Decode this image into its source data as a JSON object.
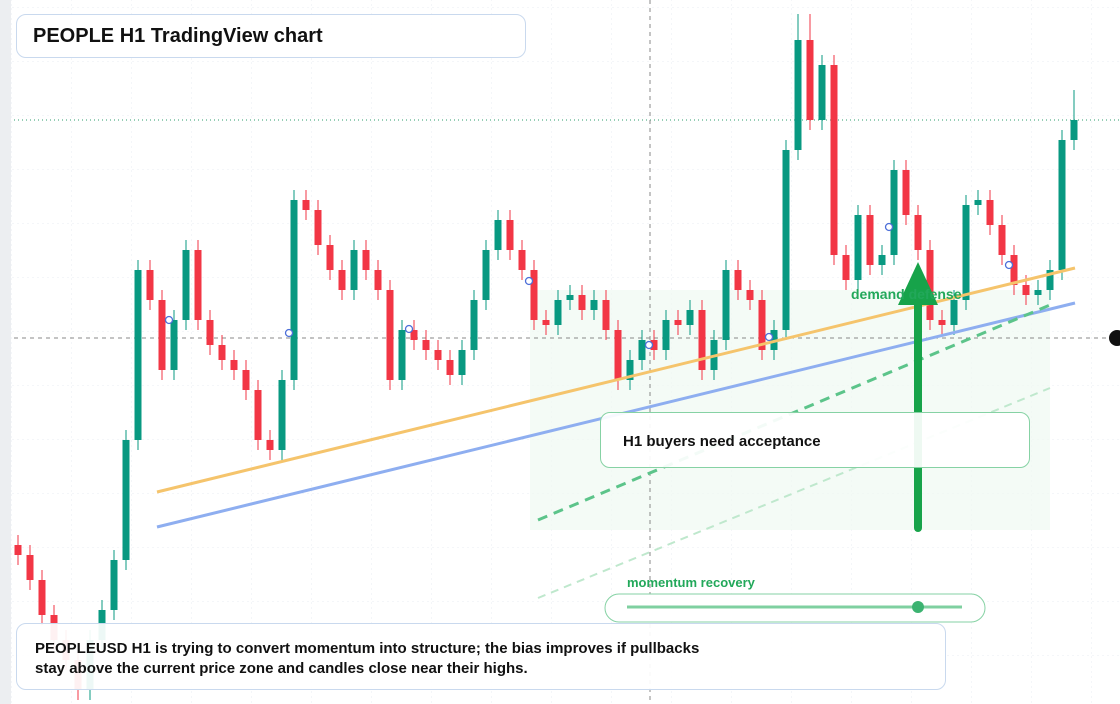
{
  "chart_data": {
    "type": "candlestick",
    "title": "PEOPLE H1 TradingView chart",
    "ylim": [
      0,
      704
    ],
    "up_color": "#089981",
    "down_color": "#f23645",
    "open": [
      159,
      149,
      124,
      89,
      64,
      44,
      14,
      64,
      94,
      144,
      264,
      434,
      404,
      334,
      384,
      454,
      384,
      359,
      344,
      334,
      314,
      264,
      254,
      324,
      504,
      494,
      459,
      434,
      414,
      454,
      434,
      414,
      324,
      374,
      364,
      354,
      344,
      329,
      354,
      404,
      454,
      484,
      454,
      434,
      384,
      379,
      404,
      409,
      394,
      404,
      374,
      324,
      344,
      364,
      354,
      384,
      379,
      394,
      334,
      364,
      434,
      414,
      404,
      354,
      374,
      554,
      664,
      584,
      639,
      449,
      424,
      489,
      439,
      449,
      534,
      489,
      454,
      384,
      379,
      404,
      499,
      504,
      479,
      449,
      419,
      409,
      414,
      434,
      564
    ],
    "high": [
      169,
      159,
      134,
      99,
      74,
      54,
      74,
      104,
      154,
      274,
      444,
      444,
      414,
      394,
      464,
      464,
      394,
      369,
      354,
      344,
      324,
      274,
      334,
      514,
      514,
      504,
      469,
      444,
      464,
      464,
      444,
      424,
      384,
      384,
      374,
      364,
      354,
      364,
      414,
      464,
      494,
      494,
      464,
      444,
      394,
      414,
      419,
      419,
      414,
      414,
      384,
      354,
      374,
      374,
      394,
      394,
      404,
      404,
      374,
      444,
      444,
      424,
      414,
      384,
      564,
      690,
      690,
      649,
      649,
      459,
      499,
      499,
      459,
      544,
      544,
      499,
      464,
      394,
      414,
      509,
      514,
      514,
      489,
      459,
      429,
      424,
      444,
      574,
      614
    ],
    "low": [
      139,
      114,
      79,
      54,
      34,
      4,
      4,
      54,
      84,
      134,
      254,
      394,
      324,
      324,
      374,
      374,
      349,
      334,
      324,
      304,
      254,
      244,
      244,
      314,
      484,
      449,
      424,
      404,
      404,
      424,
      404,
      314,
      314,
      354,
      344,
      334,
      319,
      319,
      344,
      394,
      444,
      444,
      424,
      374,
      369,
      369,
      394,
      384,
      384,
      364,
      314,
      314,
      334,
      344,
      344,
      369,
      369,
      324,
      324,
      354,
      404,
      394,
      344,
      344,
      364,
      544,
      574,
      574,
      439,
      414,
      414,
      429,
      429,
      439,
      479,
      444,
      374,
      369,
      369,
      394,
      489,
      469,
      439,
      409,
      399,
      399,
      404,
      424,
      554
    ],
    "close": [
      149,
      124,
      89,
      64,
      44,
      14,
      64,
      94,
      144,
      264,
      434,
      404,
      334,
      384,
      454,
      384,
      359,
      344,
      334,
      314,
      264,
      254,
      324,
      504,
      494,
      459,
      434,
      414,
      454,
      434,
      414,
      324,
      374,
      364,
      354,
      344,
      329,
      354,
      404,
      454,
      484,
      454,
      434,
      384,
      379,
      404,
      409,
      394,
      404,
      374,
      324,
      344,
      364,
      354,
      384,
      379,
      394,
      334,
      364,
      434,
      414,
      404,
      354,
      374,
      554,
      664,
      584,
      639,
      449,
      424,
      489,
      439,
      449,
      534,
      489,
      454,
      384,
      379,
      404,
      499,
      504,
      479,
      449,
      419,
      409,
      414,
      434,
      564,
      584
    ],
    "annotations": {
      "callout": "H1 buyers need acceptance",
      "zone_label": "demand defense",
      "slider_label": "momentum recovery",
      "note": [
        "PEOPLEUSD H1 is trying to convert momentum into structure; the bias improves if pullbacks",
        "stay above the current price zone and candles close near their highs."
      ]
    }
  }
}
